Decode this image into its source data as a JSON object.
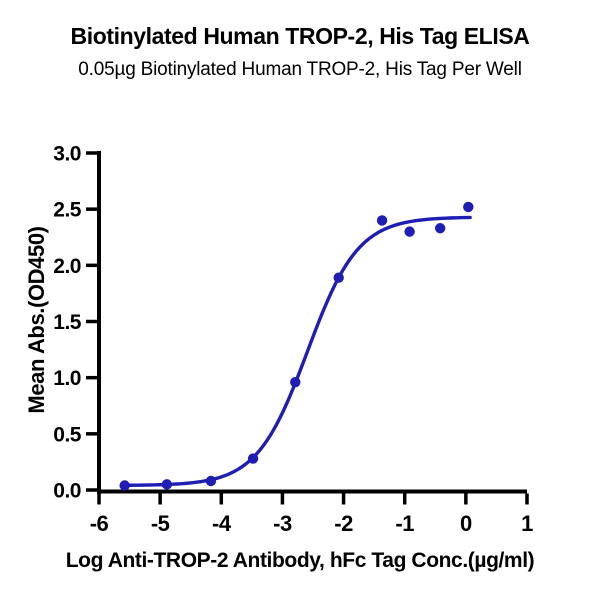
{
  "chart_data": {
    "type": "scatter",
    "title": "Biotinylated Human TROP-2, His Tag ELISA",
    "subtitle": "0.05µg Biotinylated Human TROP-2, His Tag Per Well",
    "xlabel": "Log Anti-TROP-2 Antibody, hFc Tag Conc.(µg/ml)",
    "ylabel": "Mean Abs.(OD450)",
    "xlim": [
      -6,
      1
    ],
    "ylim": [
      0,
      3
    ],
    "x_ticks": [
      -6,
      -5,
      -4,
      -3,
      -2,
      -1,
      0,
      1
    ],
    "x_tick_labels": [
      "-6",
      "-5",
      "-4",
      "-3",
      "-2",
      "-1",
      "0",
      "1"
    ],
    "y_ticks": [
      0.0,
      0.5,
      1.0,
      1.5,
      2.0,
      2.5,
      3.0
    ],
    "y_tick_labels": [
      "0.0",
      "0.5",
      "1.0",
      "1.5",
      "2.0",
      "2.5",
      "3.0"
    ],
    "points": {
      "x": [
        -5.58,
        -4.89,
        -4.17,
        -3.48,
        -2.79,
        -2.08,
        -1.37,
        -0.92,
        -0.42,
        0.04
      ],
      "y": [
        0.04,
        0.05,
        0.08,
        0.28,
        0.96,
        1.89,
        2.4,
        2.3,
        2.33,
        2.52
      ]
    },
    "curve_fit": {
      "model": "4PL sigmoid",
      "bottom": 0.04,
      "top": 2.43,
      "log_ec50": -2.59,
      "hill_slope": 1.05,
      "x_start": -5.58,
      "x_end": 0.07
    },
    "marker_color": "#1E1EB4",
    "line_color": "#1E1EB4",
    "axis_color": "#000000",
    "grid": false,
    "legend": false
  }
}
